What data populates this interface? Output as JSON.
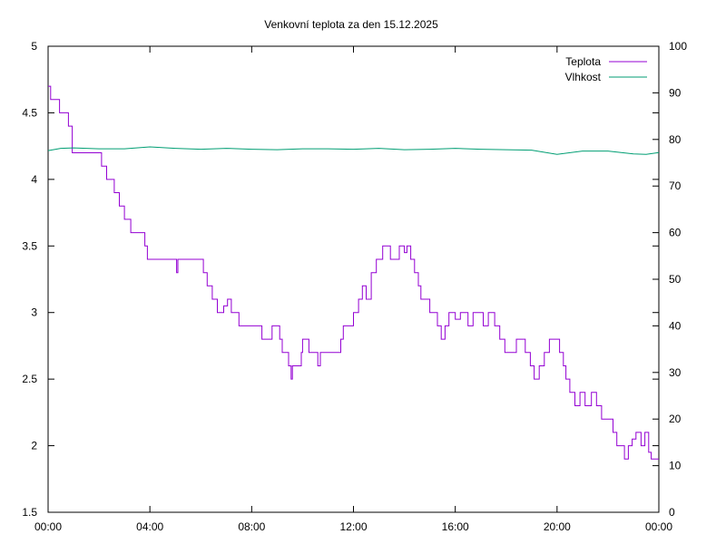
{
  "chart_data": {
    "type": "line",
    "title": "Venkovní teplota za den 15.12.2025",
    "x_axis": {
      "unit": "hours",
      "range": [
        0,
        24
      ],
      "ticks": [
        0,
        4,
        8,
        12,
        16,
        20,
        24
      ],
      "tick_labels": [
        "00:00",
        "04:00",
        "08:00",
        "12:00",
        "16:00",
        "20:00",
        "00:00"
      ]
    },
    "y_axis_left": {
      "range": [
        1.5,
        5
      ],
      "ticks": [
        1.5,
        2,
        2.5,
        3,
        3.5,
        4,
        4.5,
        5
      ],
      "tick_labels": [
        "1.5",
        "2",
        "2.5",
        "3",
        "3.5",
        "4",
        "4.5",
        "5"
      ]
    },
    "y_axis_right": {
      "range": [
        0,
        100
      ],
      "ticks": [
        0,
        10,
        20,
        30,
        40,
        50,
        60,
        70,
        80,
        90,
        100
      ],
      "tick_labels": [
        "0",
        "10",
        "20",
        "30",
        "40",
        "50",
        "60",
        "70",
        "80",
        "90",
        "100"
      ]
    },
    "grid": false,
    "legend_position": "top-right",
    "series": [
      {
        "name": "Teplota",
        "axis": "left",
        "color": "#9400d3",
        "step": true,
        "points": [
          [
            0.0,
            4.7
          ],
          [
            0.1,
            4.6
          ],
          [
            0.45,
            4.5
          ],
          [
            0.8,
            4.4
          ],
          [
            0.95,
            4.2
          ],
          [
            2.0,
            4.2
          ],
          [
            2.1,
            4.1
          ],
          [
            2.3,
            4.0
          ],
          [
            2.6,
            3.9
          ],
          [
            2.8,
            3.8
          ],
          [
            3.0,
            3.7
          ],
          [
            3.25,
            3.6
          ],
          [
            3.8,
            3.5
          ],
          [
            3.9,
            3.4
          ],
          [
            5.05,
            3.3
          ],
          [
            5.1,
            3.4
          ],
          [
            6.1,
            3.3
          ],
          [
            6.25,
            3.2
          ],
          [
            6.45,
            3.1
          ],
          [
            6.65,
            3.0
          ],
          [
            6.9,
            3.05
          ],
          [
            7.05,
            3.1
          ],
          [
            7.2,
            3.0
          ],
          [
            7.5,
            2.9
          ],
          [
            8.4,
            2.8
          ],
          [
            8.8,
            2.9
          ],
          [
            9.1,
            2.8
          ],
          [
            9.2,
            2.7
          ],
          [
            9.45,
            2.6
          ],
          [
            9.55,
            2.5
          ],
          [
            9.6,
            2.6
          ],
          [
            9.95,
            2.7
          ],
          [
            10.0,
            2.8
          ],
          [
            10.25,
            2.7
          ],
          [
            10.6,
            2.6
          ],
          [
            10.7,
            2.7
          ],
          [
            11.5,
            2.8
          ],
          [
            11.6,
            2.9
          ],
          [
            12.0,
            3.0
          ],
          [
            12.2,
            3.1
          ],
          [
            12.35,
            3.2
          ],
          [
            12.5,
            3.1
          ],
          [
            12.7,
            3.3
          ],
          [
            12.9,
            3.4
          ],
          [
            13.15,
            3.5
          ],
          [
            13.45,
            3.4
          ],
          [
            13.8,
            3.5
          ],
          [
            14.0,
            3.45
          ],
          [
            14.1,
            3.5
          ],
          [
            14.25,
            3.4
          ],
          [
            14.4,
            3.3
          ],
          [
            14.55,
            3.2
          ],
          [
            14.65,
            3.1
          ],
          [
            15.0,
            3.0
          ],
          [
            15.3,
            2.9
          ],
          [
            15.45,
            2.8
          ],
          [
            15.6,
            2.9
          ],
          [
            15.75,
            3.0
          ],
          [
            16.0,
            2.95
          ],
          [
            16.2,
            3.0
          ],
          [
            16.5,
            2.9
          ],
          [
            16.7,
            3.0
          ],
          [
            17.1,
            2.9
          ],
          [
            17.3,
            3.0
          ],
          [
            17.55,
            2.9
          ],
          [
            17.75,
            2.8
          ],
          [
            17.95,
            2.7
          ],
          [
            18.4,
            2.8
          ],
          [
            18.75,
            2.7
          ],
          [
            18.95,
            2.6
          ],
          [
            19.1,
            2.5
          ],
          [
            19.3,
            2.6
          ],
          [
            19.5,
            2.7
          ],
          [
            19.7,
            2.8
          ],
          [
            20.1,
            2.7
          ],
          [
            20.25,
            2.6
          ],
          [
            20.35,
            2.5
          ],
          [
            20.5,
            2.4
          ],
          [
            20.7,
            2.3
          ],
          [
            20.9,
            2.4
          ],
          [
            21.1,
            2.3
          ],
          [
            21.35,
            2.4
          ],
          [
            21.55,
            2.3
          ],
          [
            21.75,
            2.2
          ],
          [
            22.2,
            2.1
          ],
          [
            22.35,
            2.0
          ],
          [
            22.65,
            1.9
          ],
          [
            22.8,
            2.0
          ],
          [
            22.95,
            2.05
          ],
          [
            23.1,
            2.1
          ],
          [
            23.3,
            2.0
          ],
          [
            23.45,
            2.1
          ],
          [
            23.6,
            1.95
          ],
          [
            23.7,
            1.9
          ],
          [
            24.0,
            1.9
          ]
        ]
      },
      {
        "name": "Vlhkost",
        "axis": "right",
        "color": "#009e73",
        "step": false,
        "points": [
          [
            0.0,
            77.6
          ],
          [
            0.5,
            78.1
          ],
          [
            1.0,
            78.2
          ],
          [
            2.0,
            78.0
          ],
          [
            3.0,
            78.0
          ],
          [
            4.0,
            78.4
          ],
          [
            5.0,
            78.1
          ],
          [
            6.0,
            77.9
          ],
          [
            7.0,
            78.1
          ],
          [
            8.0,
            77.9
          ],
          [
            9.0,
            77.8
          ],
          [
            10.0,
            78.0
          ],
          [
            11.0,
            78.0
          ],
          [
            12.0,
            77.9
          ],
          [
            13.0,
            78.1
          ],
          [
            14.0,
            77.8
          ],
          [
            15.0,
            77.9
          ],
          [
            16.0,
            78.1
          ],
          [
            17.0,
            77.9
          ],
          [
            18.0,
            77.8
          ],
          [
            19.0,
            77.7
          ],
          [
            20.0,
            76.8
          ],
          [
            21.0,
            77.5
          ],
          [
            22.0,
            77.5
          ],
          [
            23.0,
            76.9
          ],
          [
            23.5,
            76.8
          ],
          [
            24.0,
            77.2
          ]
        ]
      }
    ]
  }
}
